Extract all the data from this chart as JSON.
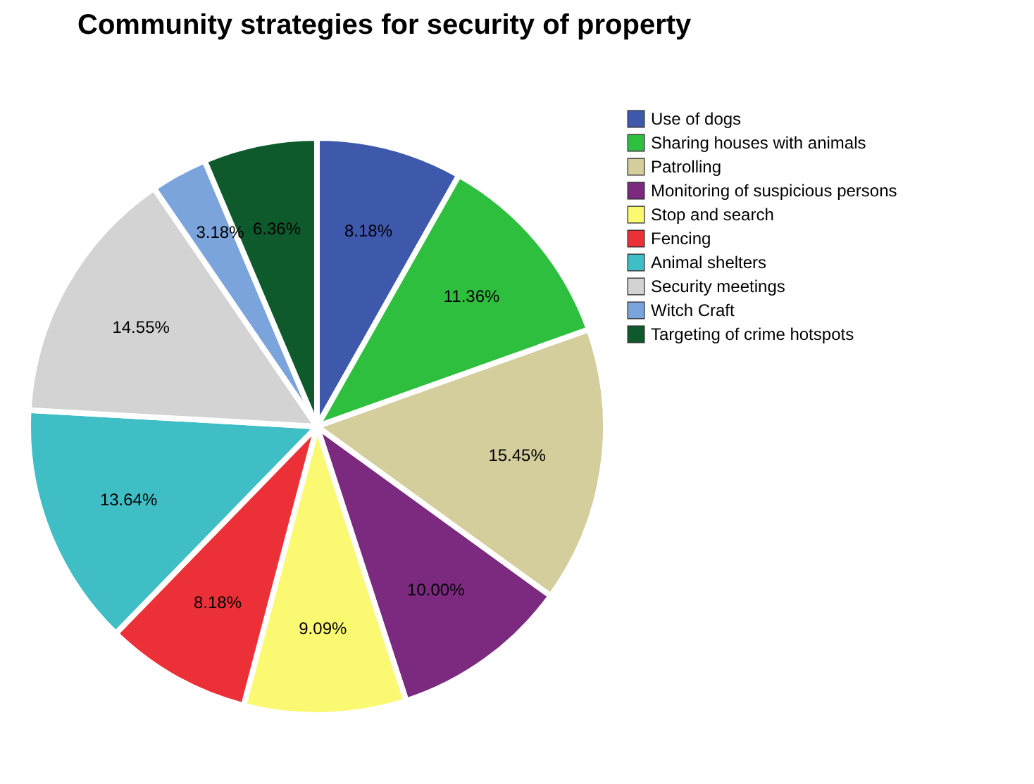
{
  "chart_data": {
    "type": "pie",
    "title": "Community  strategies for security of property",
    "categories": [
      "Use of dogs",
      "Sharing houses with animals",
      "Patrolling",
      "Monitoring of suspicious persons",
      "Stop and search",
      "Fencing",
      "Animal shelters",
      "Security meetings",
      "Witch Craft",
      "Targeting of crime hotspots"
    ],
    "values": [
      8.18,
      11.36,
      15.45,
      10.0,
      9.09,
      8.18,
      13.64,
      14.55,
      3.18,
      6.36
    ],
    "value_labels": [
      "8.18%",
      "11.36%",
      "15.45%",
      "10.00%",
      "9.09%",
      "8.18%",
      "13.64%",
      "14.55%",
      "3.18%",
      "6.36%"
    ],
    "colors": [
      "#3e58ac",
      "#2fbf3f",
      "#d3ce9c",
      "#7b2a80",
      "#fbf871",
      "#ec3038",
      "#3fbfc5",
      "#d3d3d3",
      "#7ba4dc",
      "#0e5a2c"
    ],
    "legend": "top right"
  }
}
